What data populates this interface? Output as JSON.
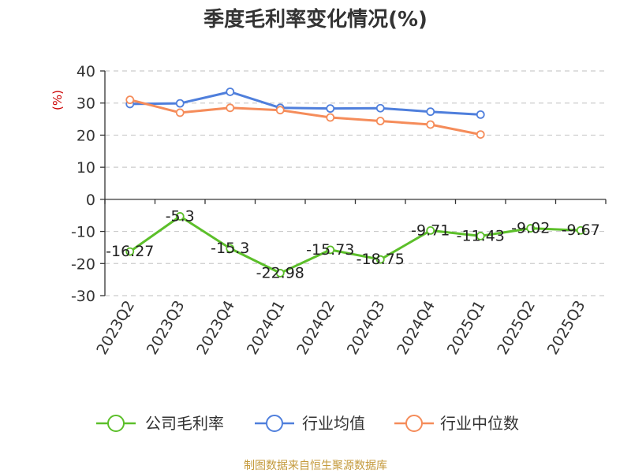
{
  "chart_data": {
    "type": "line",
    "title": "季度毛利率变化情况(%)",
    "ylabel": "(%)",
    "categories": [
      "2023Q2",
      "2023Q3",
      "2023Q4",
      "2024Q1",
      "2024Q2",
      "2024Q3",
      "2024Q4",
      "2025Q1",
      "2025Q2",
      "2025Q3"
    ],
    "ylim": [
      -30,
      40
    ],
    "yticks": [
      40,
      30,
      20,
      10,
      0,
      -10,
      -20,
      -30
    ],
    "grid": true,
    "legend_position": "bottom",
    "series": [
      {
        "name": "公司毛利率",
        "color": "#5cbf2a",
        "values": [
          -16.27,
          -5.3,
          -15.3,
          -22.98,
          -15.73,
          -18.75,
          -9.71,
          -11.43,
          -9.02,
          -9.67
        ],
        "labels": [
          "-16.27",
          "-5.3",
          "-15.3",
          "-22.98",
          "-15.73",
          "-18.75",
          "-9.71",
          "-11.43",
          "-9.02",
          "-9.67"
        ]
      },
      {
        "name": "行业均值",
        "color": "#4f7fdc",
        "values": [
          29.7,
          29.9,
          33.5,
          28.5,
          28.3,
          28.4,
          27.3,
          26.4,
          null,
          null
        ]
      },
      {
        "name": "行业中位数",
        "color": "#f58c5a",
        "values": [
          31.0,
          27.0,
          28.5,
          27.8,
          25.5,
          24.4,
          23.3,
          20.2,
          null,
          null
        ]
      }
    ]
  },
  "source": "制图数据来自恒生聚源数据库"
}
